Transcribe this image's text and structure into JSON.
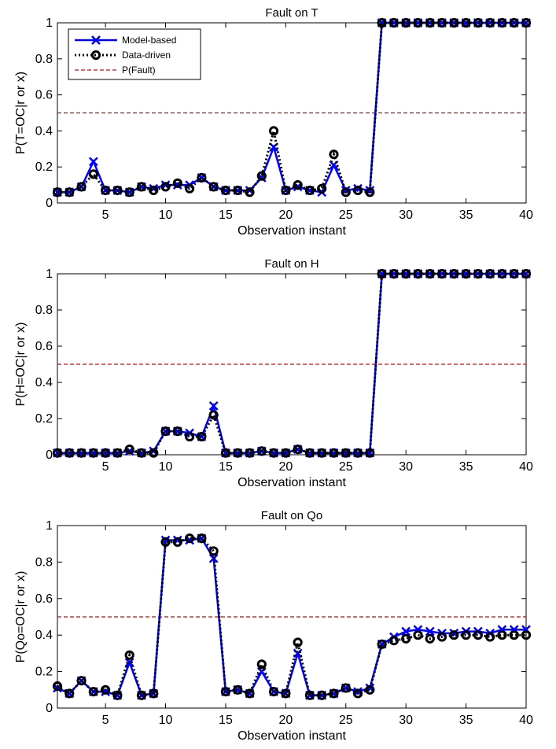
{
  "chart_data": [
    {
      "type": "line",
      "title": "Fault on T",
      "xlabel": "Observation instant",
      "ylabel": "P(T=OC|r or x)",
      "xlim": [
        1,
        40
      ],
      "ylim": [
        0,
        1
      ],
      "xticks": [
        5,
        10,
        15,
        20,
        25,
        30,
        35,
        40
      ],
      "yticks": [
        0,
        0.2,
        0.4,
        0.6,
        0.8,
        1
      ],
      "ytick_labels": [
        "0",
        "0.2",
        "0.4",
        "0.6",
        "0.8",
        "1"
      ],
      "x": [
        1,
        2,
        3,
        4,
        5,
        6,
        7,
        8,
        9,
        10,
        11,
        12,
        13,
        14,
        15,
        16,
        17,
        18,
        19,
        20,
        21,
        22,
        23,
        24,
        25,
        26,
        27,
        28,
        29,
        30,
        31,
        32,
        33,
        34,
        35,
        36,
        37,
        38,
        39,
        40
      ],
      "series": [
        {
          "name": "Model-based",
          "color": "#0000ff",
          "marker": "x",
          "style": "solid",
          "values": [
            0.06,
            0.06,
            0.09,
            0.23,
            0.07,
            0.07,
            0.06,
            0.09,
            0.08,
            0.1,
            0.1,
            0.1,
            0.14,
            0.09,
            0.07,
            0.07,
            0.07,
            0.14,
            0.31,
            0.07,
            0.09,
            0.07,
            0.06,
            0.21,
            0.07,
            0.08,
            0.07,
            1,
            1,
            1,
            1,
            1,
            1,
            1,
            1,
            1,
            1,
            1,
            1,
            1
          ]
        },
        {
          "name": "Data-driven",
          "color": "#000000",
          "marker": "o",
          "style": "dotted",
          "values": [
            0.06,
            0.06,
            0.09,
            0.16,
            0.07,
            0.07,
            0.06,
            0.09,
            0.07,
            0.09,
            0.11,
            0.08,
            0.14,
            0.09,
            0.07,
            0.07,
            0.06,
            0.15,
            0.4,
            0.07,
            0.1,
            0.07,
            0.08,
            0.27,
            0.06,
            0.07,
            0.06,
            1,
            1,
            1,
            1,
            1,
            1,
            1,
            1,
            1,
            1,
            1,
            1,
            1
          ]
        }
      ],
      "threshold": {
        "name": "P(Fault)",
        "value": 0.5,
        "color": "#dd0000"
      },
      "legend": "top-left"
    },
    {
      "type": "line",
      "title": "Fault on H",
      "xlabel": "Observation instant",
      "ylabel": "P(H=OC|r or x)",
      "xlim": [
        1,
        40
      ],
      "ylim": [
        0,
        1
      ],
      "xticks": [
        5,
        10,
        15,
        20,
        25,
        30,
        35,
        40
      ],
      "yticks": [
        0,
        0.2,
        0.4,
        0.6,
        0.8,
        1
      ],
      "ytick_labels": [
        "0",
        "0.2",
        "0.4",
        "0.6",
        "0.8",
        "1"
      ],
      "x": [
        1,
        2,
        3,
        4,
        5,
        6,
        7,
        8,
        9,
        10,
        11,
        12,
        13,
        14,
        15,
        16,
        17,
        18,
        19,
        20,
        21,
        22,
        23,
        24,
        25,
        26,
        27,
        28,
        29,
        30,
        31,
        32,
        33,
        34,
        35,
        36,
        37,
        38,
        39,
        40
      ],
      "series": [
        {
          "name": "Model-based",
          "color": "#0000ff",
          "marker": "x",
          "style": "solid",
          "values": [
            0.01,
            0.01,
            0.01,
            0.01,
            0.01,
            0.01,
            0.02,
            0.01,
            0.02,
            0.13,
            0.13,
            0.12,
            0.1,
            0.27,
            0.01,
            0.01,
            0.01,
            0.02,
            0.01,
            0.01,
            0.03,
            0.01,
            0.01,
            0.01,
            0.01,
            0.01,
            0.01,
            1,
            1,
            1,
            1,
            1,
            1,
            1,
            1,
            1,
            1,
            1,
            1,
            1
          ]
        },
        {
          "name": "Data-driven",
          "color": "#000000",
          "marker": "o",
          "style": "dotted",
          "values": [
            0.01,
            0.01,
            0.01,
            0.01,
            0.01,
            0.01,
            0.03,
            0.01,
            0.01,
            0.13,
            0.13,
            0.1,
            0.1,
            0.22,
            0.01,
            0.01,
            0.01,
            0.02,
            0.01,
            0.01,
            0.03,
            0.01,
            0.01,
            0.01,
            0.01,
            0.01,
            0.01,
            1,
            1,
            1,
            1,
            1,
            1,
            1,
            1,
            1,
            1,
            1,
            1,
            1
          ]
        }
      ],
      "threshold": {
        "name": "P(Fault)",
        "value": 0.5,
        "color": "#dd0000"
      }
    },
    {
      "type": "line",
      "title": "Fault on Qo",
      "xlabel": "Observation instant",
      "ylabel": "P(Qo=OC|r or x)",
      "xlim": [
        1,
        40
      ],
      "ylim": [
        0,
        1
      ],
      "xticks": [
        5,
        10,
        15,
        20,
        25,
        30,
        35,
        40
      ],
      "yticks": [
        0,
        0.2,
        0.4,
        0.6,
        0.8,
        1
      ],
      "ytick_labels": [
        "0",
        "0.2",
        "0.4",
        "0.6",
        "0.8",
        "1"
      ],
      "x": [
        1,
        2,
        3,
        4,
        5,
        6,
        7,
        8,
        9,
        10,
        11,
        12,
        13,
        14,
        15,
        16,
        17,
        18,
        19,
        20,
        21,
        22,
        23,
        24,
        25,
        26,
        27,
        28,
        29,
        30,
        31,
        32,
        33,
        34,
        35,
        36,
        37,
        38,
        39,
        40
      ],
      "series": [
        {
          "name": "Model-based",
          "color": "#0000ff",
          "marker": "x",
          "style": "solid",
          "values": [
            0.11,
            0.08,
            0.15,
            0.09,
            0.09,
            0.07,
            0.25,
            0.07,
            0.08,
            0.92,
            0.92,
            0.92,
            0.93,
            0.82,
            0.09,
            0.1,
            0.08,
            0.2,
            0.09,
            0.08,
            0.3,
            0.07,
            0.07,
            0.08,
            0.11,
            0.09,
            0.11,
            0.35,
            0.39,
            0.42,
            0.43,
            0.42,
            0.41,
            0.41,
            0.42,
            0.42,
            0.41,
            0.43,
            0.43,
            0.43
          ]
        },
        {
          "name": "Data-driven",
          "color": "#000000",
          "marker": "o",
          "style": "dotted",
          "values": [
            0.12,
            0.08,
            0.15,
            0.09,
            0.1,
            0.07,
            0.29,
            0.07,
            0.08,
            0.91,
            0.91,
            0.93,
            0.93,
            0.86,
            0.09,
            0.1,
            0.08,
            0.24,
            0.09,
            0.08,
            0.36,
            0.07,
            0.07,
            0.08,
            0.11,
            0.08,
            0.1,
            0.35,
            0.37,
            0.38,
            0.4,
            0.38,
            0.39,
            0.4,
            0.4,
            0.4,
            0.39,
            0.4,
            0.4,
            0.4
          ]
        }
      ],
      "threshold": {
        "name": "P(Fault)",
        "value": 0.5,
        "color": "#dd0000"
      }
    }
  ]
}
